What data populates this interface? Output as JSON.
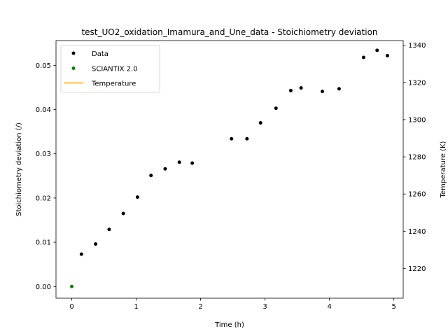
{
  "chart_data": {
    "type": "scatter",
    "title": "test_UO2_oxidation_Imamura_and_Une_data - Stoichiometry deviation",
    "xlabel": "Time (h)",
    "ylabel": "Stoichiometry deviation (/)",
    "y2label": "Temperature (K)",
    "xlim": [
      -0.245,
      5.145
    ],
    "ylim": [
      -0.00265,
      0.0556
    ],
    "y2lim": [
      1204,
      1342.5
    ],
    "xticks": [
      0,
      1,
      2,
      3,
      4,
      5
    ],
    "xtick_labels": [
      "0",
      "1",
      "2",
      "3",
      "4",
      "5"
    ],
    "yticks": [
      0.0,
      0.01,
      0.02,
      0.03,
      0.04,
      0.05
    ],
    "ytick_labels": [
      "0.00",
      "0.01",
      "0.02",
      "0.03",
      "0.04",
      "0.05"
    ],
    "y2ticks": [
      1220,
      1240,
      1260,
      1280,
      1300,
      1320,
      1340
    ],
    "y2tick_labels": [
      "1220",
      "1240",
      "1260",
      "1280",
      "1300",
      "1320",
      "1340"
    ],
    "grid": false,
    "legend_position": "top-left",
    "series": [
      {
        "name": "Data",
        "kind": "marker",
        "color": "#000000",
        "axis": "left",
        "x": [
          0.15,
          0.37,
          0.58,
          0.8,
          1.02,
          1.23,
          1.45,
          1.67,
          1.87,
          2.48,
          2.72,
          2.93,
          3.17,
          3.4,
          3.56,
          3.89,
          4.15,
          4.53,
          4.74,
          4.9
        ],
        "y": [
          0.0073,
          0.0096,
          0.0129,
          0.0165,
          0.0202,
          0.0251,
          0.0266,
          0.0281,
          0.0279,
          0.0334,
          0.0334,
          0.037,
          0.0403,
          0.0443,
          0.0449,
          0.0441,
          0.0447,
          0.0518,
          0.0534,
          0.0522
        ]
      },
      {
        "name": "SCIANTIX 2.0",
        "kind": "marker",
        "color": "#008000",
        "axis": "left",
        "x": [
          0.0
        ],
        "y": [
          0.0
        ]
      },
      {
        "name": "Temperature",
        "kind": "line",
        "color": "#ffa500",
        "axis": "right",
        "x": [],
        "y": []
      }
    ]
  }
}
